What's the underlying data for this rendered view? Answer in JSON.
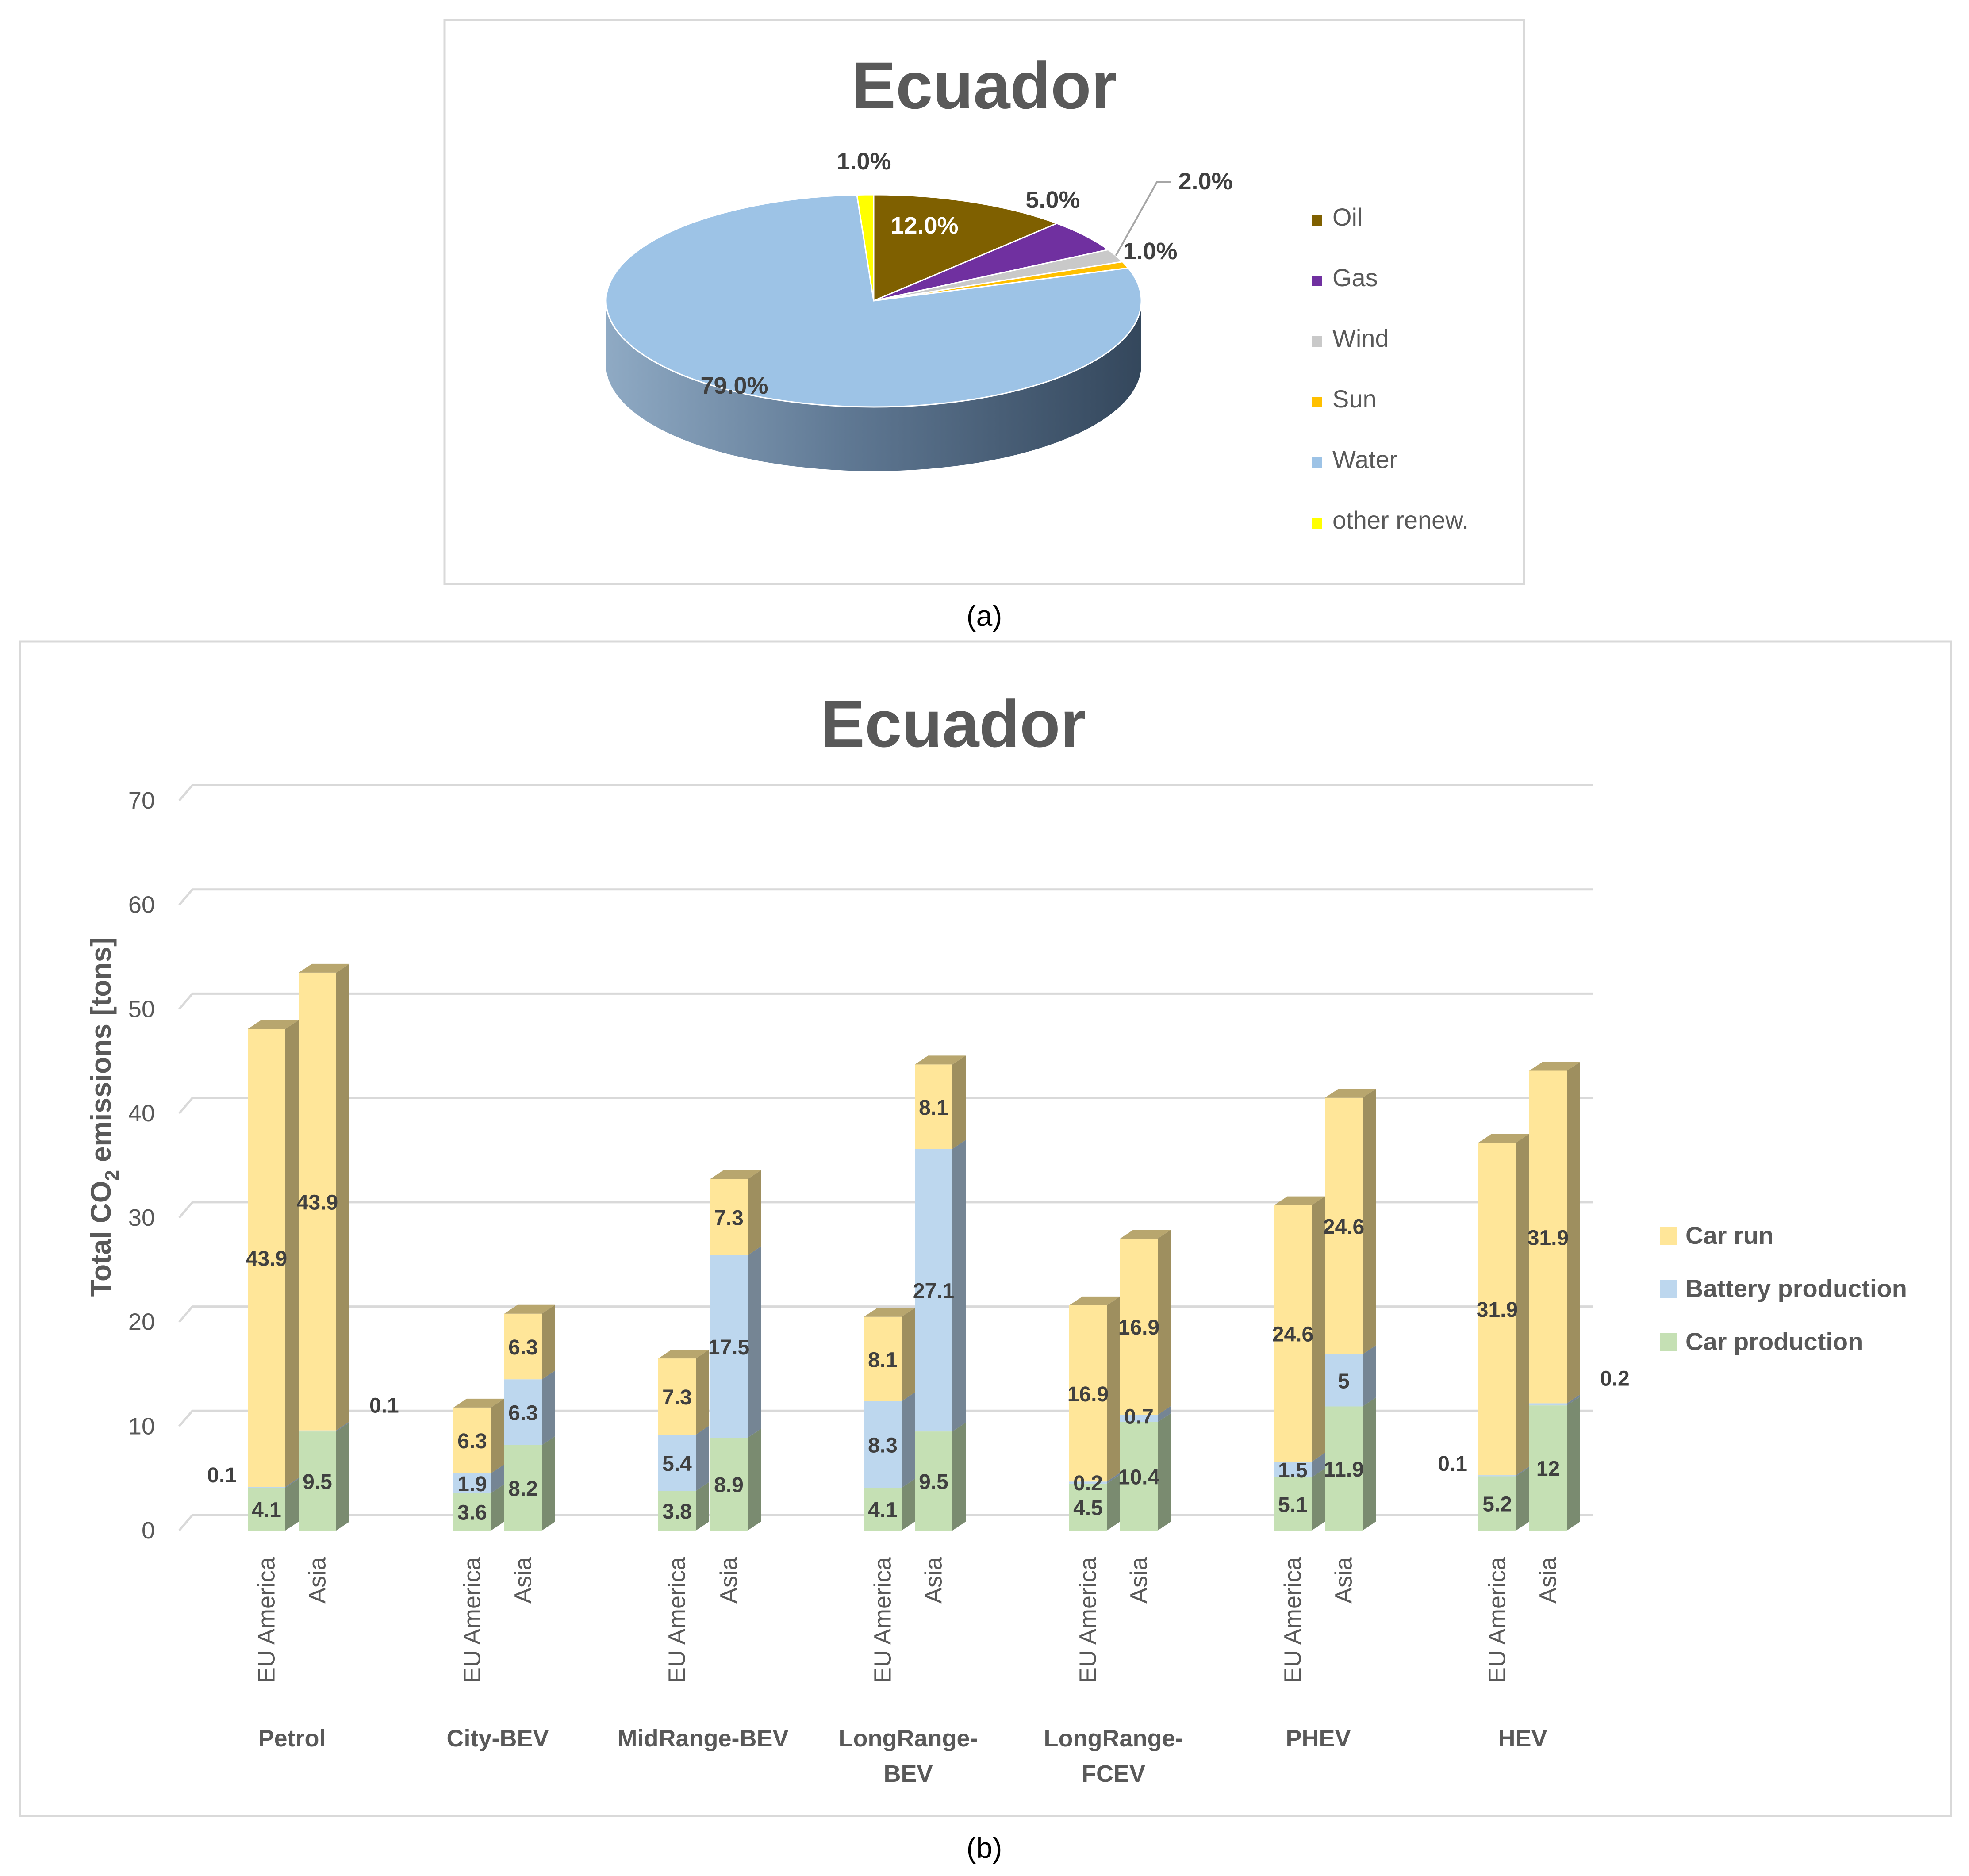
{
  "charts": {
    "pie": {
      "title": "Ecuador",
      "caption": "(a)"
    },
    "bar": {
      "title": "Ecuador",
      "caption": "(b)",
      "ylabel_main": "Total CO",
      "ylabel_sub": "2",
      "ylabel_tail": " emissions [tons]"
    }
  },
  "colors": {
    "oil": "#7f6000",
    "gas": "#7030a0",
    "wind": "#c9c9c9",
    "sun": "#ffc000",
    "water": "#9dc3e6",
    "other": "#ffff00",
    "car_run": "#ffe699",
    "battery": "#bdd7ee",
    "car_production": "#c5e0b4",
    "text_dark": "#595959",
    "grid": "#d9d9d9"
  },
  "chart_data": [
    {
      "type": "pie",
      "title": "Ecuador",
      "style": "3d",
      "legend_position": "right",
      "slices": [
        {
          "label": "Oil",
          "value": 12.0,
          "display": "12.0%",
          "color": "#7f6000"
        },
        {
          "label": "Gas",
          "value": 5.0,
          "display": "5.0%",
          "color": "#7030a0"
        },
        {
          "label": "Wind",
          "value": 2.0,
          "display": "2.0%",
          "color": "#c9c9c9"
        },
        {
          "label": "Sun",
          "value": 1.0,
          "display": "1.0%",
          "color": "#ffc000"
        },
        {
          "label": "Water",
          "value": 79.0,
          "display": "79.0%",
          "color": "#9dc3e6"
        },
        {
          "label": "other renew.",
          "value": 1.0,
          "display": "1.0%",
          "color": "#ffff00"
        }
      ]
    },
    {
      "type": "bar",
      "stacked": true,
      "style": "3d",
      "title": "Ecuador",
      "ylabel": "Total CO2 emissions [tons]",
      "ylim": [
        0,
        70
      ],
      "yticks": [
        0,
        10,
        20,
        30,
        40,
        50,
        60,
        70
      ],
      "grid": true,
      "legend_position": "right",
      "groups": [
        "Petrol",
        "City-BEV",
        "MidRange-BEV",
        "LongRange-BEV",
        "LongRange-FCEV",
        "PHEV",
        "HEV"
      ],
      "group_label_lines": [
        [
          "Petrol"
        ],
        [
          "City-BEV"
        ],
        [
          "MidRange-BEV"
        ],
        [
          "LongRange-",
          "BEV"
        ],
        [
          "LongRange-",
          "FCEV"
        ],
        [
          "PHEV"
        ],
        [
          "HEV"
        ]
      ],
      "subcategories": [
        "EU America",
        "Asia"
      ],
      "series_legend": [
        "Car run",
        "Battery production",
        "Car production"
      ],
      "bars": [
        {
          "group": "Petrol",
          "sub": "EU America",
          "car_production": 4.1,
          "battery": 0.1,
          "car_run": 43.9,
          "labels": {
            "car_production": "4.1",
            "battery": "0.1",
            "car_run": "43.9"
          }
        },
        {
          "group": "Petrol",
          "sub": "Asia",
          "car_production": 9.5,
          "battery": 0.1,
          "car_run": 43.9,
          "labels": {
            "car_production": "9.5",
            "battery": "0.1",
            "car_run": "43.9"
          }
        },
        {
          "group": "City-BEV",
          "sub": "EU America",
          "car_production": 3.6,
          "battery": 1.9,
          "car_run": 6.3,
          "labels": {
            "car_production": "3.6",
            "battery": "1.9",
            "car_run": "6.3"
          }
        },
        {
          "group": "City-BEV",
          "sub": "Asia",
          "car_production": 8.2,
          "battery": 6.3,
          "car_run": 6.3,
          "labels": {
            "car_production": "8.2",
            "battery": "6.3",
            "car_run": "6.3"
          }
        },
        {
          "group": "MidRange-BEV",
          "sub": "EU America",
          "car_production": 3.8,
          "battery": 5.4,
          "car_run": 7.3,
          "labels": {
            "car_production": "3.8",
            "battery": "5.4",
            "car_run": "7.3"
          }
        },
        {
          "group": "MidRange-BEV",
          "sub": "Asia",
          "car_production": 8.9,
          "battery": 17.5,
          "car_run": 7.3,
          "labels": {
            "car_production": "8.9",
            "battery": "17.5",
            "car_run": "7.3"
          }
        },
        {
          "group": "LongRange-BEV",
          "sub": "EU America",
          "car_production": 4.1,
          "battery": 8.3,
          "car_run": 8.1,
          "labels": {
            "car_production": "4.1",
            "battery": "8.3",
            "car_run": "8.1"
          }
        },
        {
          "group": "LongRange-BEV",
          "sub": "Asia",
          "car_production": 9.5,
          "battery": 27.1,
          "car_run": 8.1,
          "labels": {
            "car_production": "9.5",
            "battery": "27.1",
            "car_run": "8.1"
          }
        },
        {
          "group": "LongRange-FCEV",
          "sub": "EU America",
          "car_production": 4.5,
          "battery": 0.2,
          "car_run": 16.9,
          "labels": {
            "car_production": "4.5",
            "battery": "0.2",
            "car_run": "16.9"
          }
        },
        {
          "group": "LongRange-FCEV",
          "sub": "Asia",
          "car_production": 10.4,
          "battery": 0.7,
          "car_run": 16.9,
          "labels": {
            "car_production": "10.4",
            "battery": "0.7",
            "car_run": "16.9"
          }
        },
        {
          "group": "PHEV",
          "sub": "EU America",
          "car_production": 5.1,
          "battery": 1.5,
          "car_run": 24.6,
          "labels": {
            "car_production": "5.1",
            "battery": "1.5",
            "car_run": "24.6"
          }
        },
        {
          "group": "PHEV",
          "sub": "Asia",
          "car_production": 11.9,
          "battery": 5.0,
          "car_run": 24.6,
          "labels": {
            "car_production": "11.9",
            "battery": "5",
            "car_run": "24.6"
          }
        },
        {
          "group": "HEV",
          "sub": "EU America",
          "car_production": 5.2,
          "battery": 0.1,
          "car_run": 31.9,
          "labels": {
            "car_production": "5.2",
            "battery": "0.1",
            "car_run": "31.9"
          }
        },
        {
          "group": "HEV",
          "sub": "Asia",
          "car_production": 12.0,
          "battery": 0.2,
          "car_run": 31.9,
          "labels": {
            "car_production": "12",
            "battery": "0.2",
            "car_run": "31.9"
          }
        }
      ]
    }
  ]
}
